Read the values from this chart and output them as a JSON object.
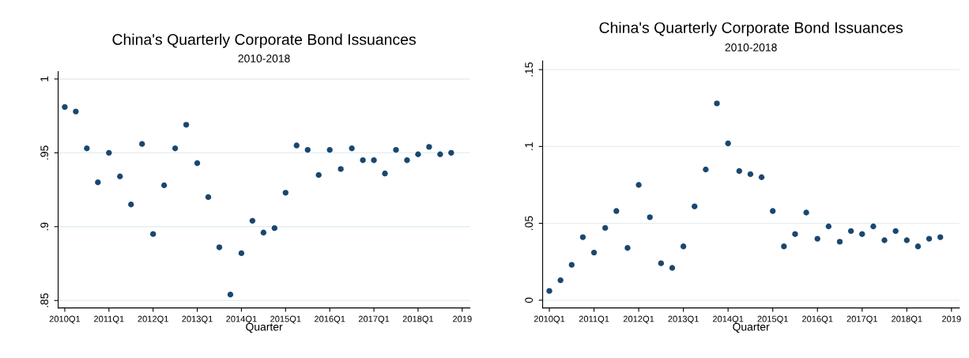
{
  "chart_data": [
    {
      "type": "scatter",
      "title": "China's Quarterly Corporate Bond Issuances",
      "subtitle": "2010-2018",
      "xlabel": "Quarter",
      "categories": [
        "2010Q1",
        null,
        null,
        null,
        "2011Q1",
        null,
        null,
        null,
        "2012Q1",
        null,
        null,
        null,
        "2013Q1",
        null,
        null,
        null,
        "2014Q1",
        null,
        null,
        null,
        "2015Q1",
        null,
        null,
        null,
        "2016Q1",
        null,
        null,
        null,
        "2017Q1",
        null,
        null,
        null,
        "2018Q1",
        null,
        null,
        null,
        "2019"
      ],
      "series": [
        {
          "color": "#1a476f",
          "values": [
            0.981,
            0.978,
            0.953,
            0.93,
            0.95,
            0.934,
            0.915,
            0.956,
            0.895,
            0.928,
            0.953,
            0.969,
            0.943,
            0.92,
            0.886,
            0.854,
            0.882,
            0.904,
            0.896,
            0.899,
            0.923,
            0.955,
            0.952,
            0.935,
            0.952,
            0.939,
            0.953,
            0.945,
            0.945,
            0.936,
            0.952,
            0.945,
            0.949,
            0.954,
            0.949,
            0.95,
            null
          ]
        }
      ],
      "ylim": [
        0.845,
        1.005
      ],
      "yticks": [
        {
          "value": 0.85,
          "label": ".85"
        },
        {
          "value": 0.9,
          "label": ".9"
        },
        {
          "value": 0.95,
          "label": ".95"
        },
        1
      ],
      "grid": "y",
      "marker": "circle"
    },
    {
      "type": "scatter",
      "title": "China's Quarterly Corporate Bond Issuances",
      "subtitle": "2010-2018",
      "xlabel": "Quarter",
      "categories": [
        "2010Q1",
        null,
        null,
        null,
        "2011Q1",
        null,
        null,
        null,
        "2012Q1",
        null,
        null,
        null,
        "2013Q1",
        null,
        null,
        null,
        "2014Q1",
        null,
        null,
        null,
        "2015Q1",
        null,
        null,
        null,
        "2016Q1",
        null,
        null,
        null,
        "2017Q1",
        null,
        null,
        null,
        "2018Q1",
        null,
        null,
        null,
        "2019"
      ],
      "series": [
        {
          "color": "#1a476f",
          "values": [
            0.006,
            0.013,
            0.023,
            0.041,
            0.031,
            0.047,
            0.058,
            0.034,
            0.075,
            0.054,
            0.024,
            0.021,
            0.035,
            0.061,
            0.085,
            0.128,
            0.102,
            0.084,
            0.082,
            0.08,
            0.058,
            0.035,
            0.043,
            0.057,
            0.04,
            0.048,
            0.038,
            0.045,
            0.043,
            0.048,
            0.039,
            0.045,
            0.039,
            0.035,
            0.04,
            0.041,
            null
          ]
        }
      ],
      "ylim": [
        -0.005,
        0.1557
      ],
      "yticks": [
        0,
        {
          "value": 0.05,
          "label": ".05"
        },
        {
          "value": 0.1,
          "label": ".1"
        },
        {
          "value": 0.15,
          "label": ".15"
        }
      ],
      "grid": "y",
      "marker": "circle"
    }
  ]
}
